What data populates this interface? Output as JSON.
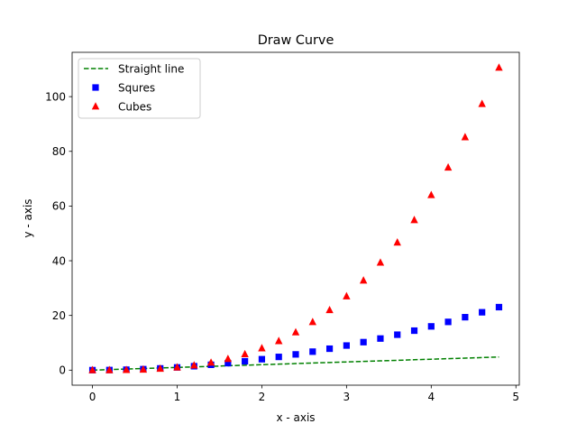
{
  "chart_data": {
    "type": "scatter",
    "title": "Draw Curve",
    "xlabel": "x - axis",
    "ylabel": "y - axis",
    "xlim": [
      -0.24,
      5.04
    ],
    "ylim": [
      -5.5,
      116.2
    ],
    "x_ticks": [
      0,
      1,
      2,
      3,
      4,
      5
    ],
    "y_ticks": [
      0,
      20,
      40,
      60,
      80,
      100
    ],
    "grid": false,
    "legend_position": "top-left",
    "x": [
      0.0,
      0.2,
      0.4,
      0.6,
      0.8,
      1.0,
      1.2,
      1.4,
      1.6,
      1.8,
      2.0,
      2.2,
      2.4,
      2.6,
      2.8,
      3.0,
      3.2,
      3.4,
      3.6,
      3.8,
      4.0,
      4.2,
      4.4,
      4.6,
      4.8
    ],
    "series": [
      {
        "name": "Straight line",
        "style": "dashed-line",
        "color": "#008000",
        "values": [
          0.0,
          0.2,
          0.4,
          0.6,
          0.8,
          1.0,
          1.2,
          1.4,
          1.6,
          1.8,
          2.0,
          2.2,
          2.4,
          2.6,
          2.8,
          3.0,
          3.2,
          3.4,
          3.6,
          3.8,
          4.0,
          4.2,
          4.4,
          4.6,
          4.8
        ]
      },
      {
        "name": "Squres",
        "style": "square-markers",
        "color": "#0000ff",
        "values": [
          0.0,
          0.04,
          0.16,
          0.36,
          0.64,
          1.0,
          1.44,
          1.96,
          2.56,
          3.24,
          4.0,
          4.84,
          5.76,
          6.76,
          7.84,
          9.0,
          10.24,
          11.56,
          12.96,
          14.44,
          16.0,
          17.64,
          19.36,
          21.16,
          23.04
        ]
      },
      {
        "name": "Cubes",
        "style": "triangle-markers",
        "color": "#ff0000",
        "values": [
          0.0,
          0.008,
          0.064,
          0.216,
          0.512,
          1.0,
          1.728,
          2.744,
          4.096,
          5.832,
          8.0,
          10.648,
          13.824,
          17.576,
          21.952,
          27.0,
          32.768,
          39.304,
          46.656,
          54.872,
          64.0,
          74.088,
          85.184,
          97.336,
          110.592
        ]
      }
    ]
  }
}
